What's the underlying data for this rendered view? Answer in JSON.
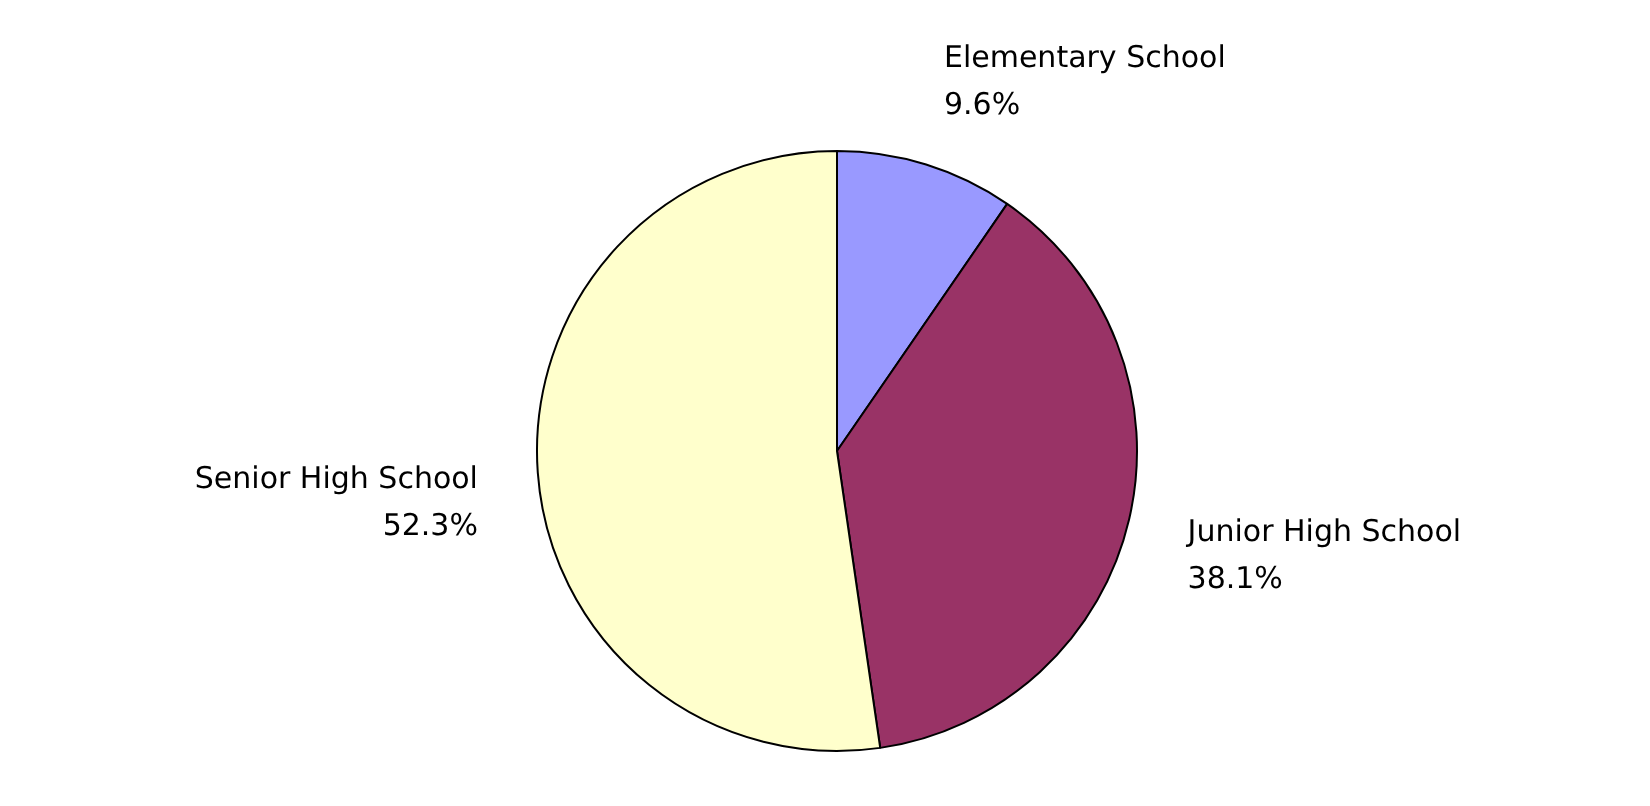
{
  "chart_data": {
    "type": "pie",
    "categories": [
      "Elementary School",
      "Junior High School",
      "Senior High School"
    ],
    "values": [
      9.6,
      38.1,
      52.3
    ],
    "colors": [
      "#9999ff",
      "#993366",
      "#ffffcc"
    ],
    "value_labels": [
      "9.6%",
      "38.1%",
      "52.3%"
    ],
    "legend": false
  }
}
